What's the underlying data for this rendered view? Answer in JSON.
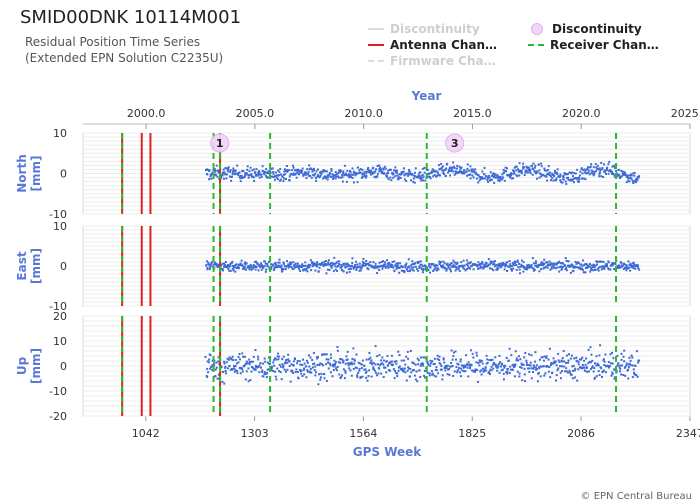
{
  "header": {
    "title": "SMID00DNK 10114M001",
    "subtitle_line1": "Residual Position Time Series",
    "subtitle_line2": "(Extended EPN Solution C2235U)"
  },
  "legend": {
    "items": [
      {
        "label": "Discontinuity",
        "style": "line-faded",
        "color": "#d9d9d9"
      },
      {
        "label": "Discontinuity",
        "style": "dot",
        "color": "#e8b8f0"
      },
      {
        "label": "Antenna Chan…",
        "style": "line",
        "color": "#e02020"
      },
      {
        "label": "Receiver Chan…",
        "style": "dash",
        "color": "#2db82d"
      },
      {
        "label": "Firmware Cha…",
        "style": "dash-faded",
        "color": "#d9d9d9"
      }
    ]
  },
  "footer": "© EPN Central Bureau",
  "chart_data": {
    "type": "scatter",
    "top_axis": {
      "title": "Year",
      "ticks": [
        "2000.0",
        "2005.0",
        "2010.0",
        "2015.0",
        "2020.0",
        "2025.0"
      ],
      "values": [
        2000,
        2005,
        2010,
        2015,
        2020,
        2025
      ]
    },
    "bottom_axis": {
      "title": "GPS Week",
      "ticks": [
        "1042",
        "1303",
        "1564",
        "1825",
        "2086",
        "2347"
      ],
      "values": [
        1042,
        1303,
        1564,
        1825,
        2086,
        2347
      ]
    },
    "x_range_years": [
      1997.1,
      2025.0
    ],
    "data_span_years": [
      2002.7,
      2022.6
    ],
    "panels": [
      {
        "name": "North",
        "ylabel": "North\n[mm]",
        "ylim": [
          -10,
          10
        ],
        "yticks": [
          "10",
          "0",
          "-10"
        ],
        "ytick_values": [
          10,
          0,
          -10
        ],
        "noise_sd": 1.2
      },
      {
        "name": "East",
        "ylabel": "East\n[mm]",
        "ylim": [
          -10,
          10
        ],
        "yticks": [
          "10",
          "0",
          "-10"
        ],
        "ytick_values": [
          10,
          0,
          -10
        ],
        "noise_sd": 1.0
      },
      {
        "name": "Up",
        "ylabel": "Up\n[mm]",
        "ylim": [
          -20,
          20
        ],
        "yticks": [
          "20",
          "10",
          "0",
          "-10",
          "-20"
        ],
        "ytick_values": [
          20,
          10,
          0,
          -10,
          -20
        ],
        "noise_sd": 4.0
      }
    ],
    "antenna_changes": [
      1998.9,
      1999.8,
      2000.2,
      2003.4
    ],
    "receiver_changes": [
      1998.9,
      2003.1,
      2003.4,
      2005.7,
      2012.9,
      2021.6
    ],
    "discontinuities": [
      {
        "year": 2003.2,
        "label": "1"
      },
      {
        "year": 2014.0,
        "label": "3"
      }
    ],
    "series_color": "#3d6ad6"
  }
}
